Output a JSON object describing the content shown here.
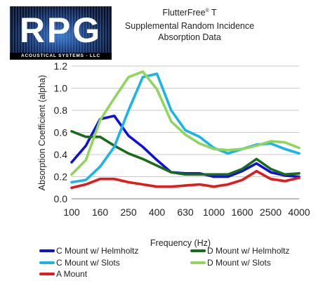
{
  "logo": {
    "text": "RPG",
    "subtext": "ACOUSTICAL SYSTEMS - LLC"
  },
  "title": {
    "product": "FlutterFree",
    "mark": "®",
    "suffix": "T",
    "line2": "Supplemental Random Incidence",
    "line3": "Absorption Data"
  },
  "chart_data": {
    "type": "line",
    "categories": [
      "100",
      "125",
      "160",
      "200",
      "250",
      "315",
      "400",
      "500",
      "630",
      "800",
      "1000",
      "1250",
      "1600",
      "2000",
      "2500",
      "3150",
      "4000"
    ],
    "xtick_labels": [
      "100",
      "160",
      "250",
      "400",
      "630",
      "1000",
      "1600",
      "2500",
      "4000"
    ],
    "xlabel": "Frequency (Hz)",
    "ylabel": "Absorption Coefficient (alpha)",
    "ylim": [
      0.0,
      1.2
    ],
    "yticks": [
      "0.0",
      "0.2",
      "0.4",
      "0.6",
      "0.8",
      "1.0",
      "1.2"
    ],
    "grid": "horizontal",
    "legend_placement": "bottom",
    "series": [
      {
        "name": "C Mount w/ Helmholtz",
        "color": "#1010dd",
        "values": [
          0.33,
          0.48,
          0.72,
          0.75,
          0.57,
          0.47,
          0.35,
          0.24,
          0.23,
          0.23,
          0.2,
          0.2,
          0.25,
          0.32,
          0.24,
          0.21,
          0.2
        ]
      },
      {
        "name": "D Mount w/ Helmholtz",
        "color": "#1a6b1a",
        "values": [
          0.61,
          0.56,
          0.56,
          0.48,
          0.41,
          0.36,
          0.3,
          0.24,
          0.22,
          0.22,
          0.22,
          0.22,
          0.27,
          0.36,
          0.27,
          0.22,
          0.23
        ]
      },
      {
        "name": "C Mount w/ Slots",
        "color": "#1ab4e8",
        "values": [
          0.15,
          0.17,
          0.29,
          0.47,
          0.8,
          1.1,
          1.13,
          0.8,
          0.62,
          0.56,
          0.46,
          0.41,
          0.45,
          0.49,
          0.5,
          0.45,
          0.41
        ]
      },
      {
        "name": "D Mount w/ Slots",
        "color": "#90d65a",
        "values": [
          0.22,
          0.35,
          0.71,
          0.91,
          1.1,
          1.15,
          0.99,
          0.7,
          0.58,
          0.5,
          0.45,
          0.44,
          0.45,
          0.48,
          0.52,
          0.51,
          0.46
        ]
      },
      {
        "name": "A Mount",
        "color": "#e11a1a",
        "values": [
          0.1,
          0.13,
          0.18,
          0.18,
          0.15,
          0.13,
          0.11,
          0.11,
          0.12,
          0.13,
          0.11,
          0.13,
          0.17,
          0.25,
          0.18,
          0.16,
          0.19
        ]
      }
    ]
  }
}
